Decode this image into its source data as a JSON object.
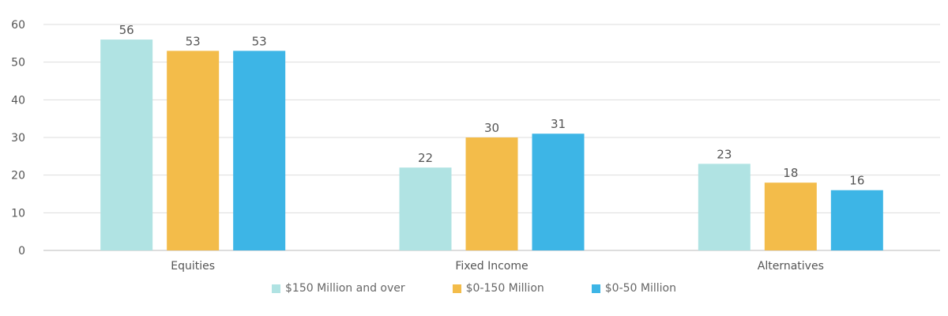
{
  "chart_data": {
    "type": "bar",
    "categories": [
      "Equities",
      "Fixed Income",
      "Alternatives"
    ],
    "series": [
      {
        "name": "$150 Million and over",
        "values": [
          56,
          22,
          23
        ],
        "color": "#b0e3e3"
      },
      {
        "name": "$0-150 Million",
        "values": [
          53,
          30,
          18
        ],
        "color": "#f3bc4a"
      },
      {
        "name": "$0-50 Million",
        "values": [
          53,
          31,
          16
        ],
        "color": "#3db5e6"
      }
    ],
    "ylim": [
      0,
      60
    ],
    "yticks": [
      "0",
      "10",
      "20",
      "30",
      "40",
      "50",
      "60"
    ],
    "grid": true,
    "legend": "bottom",
    "data_labels": true
  }
}
